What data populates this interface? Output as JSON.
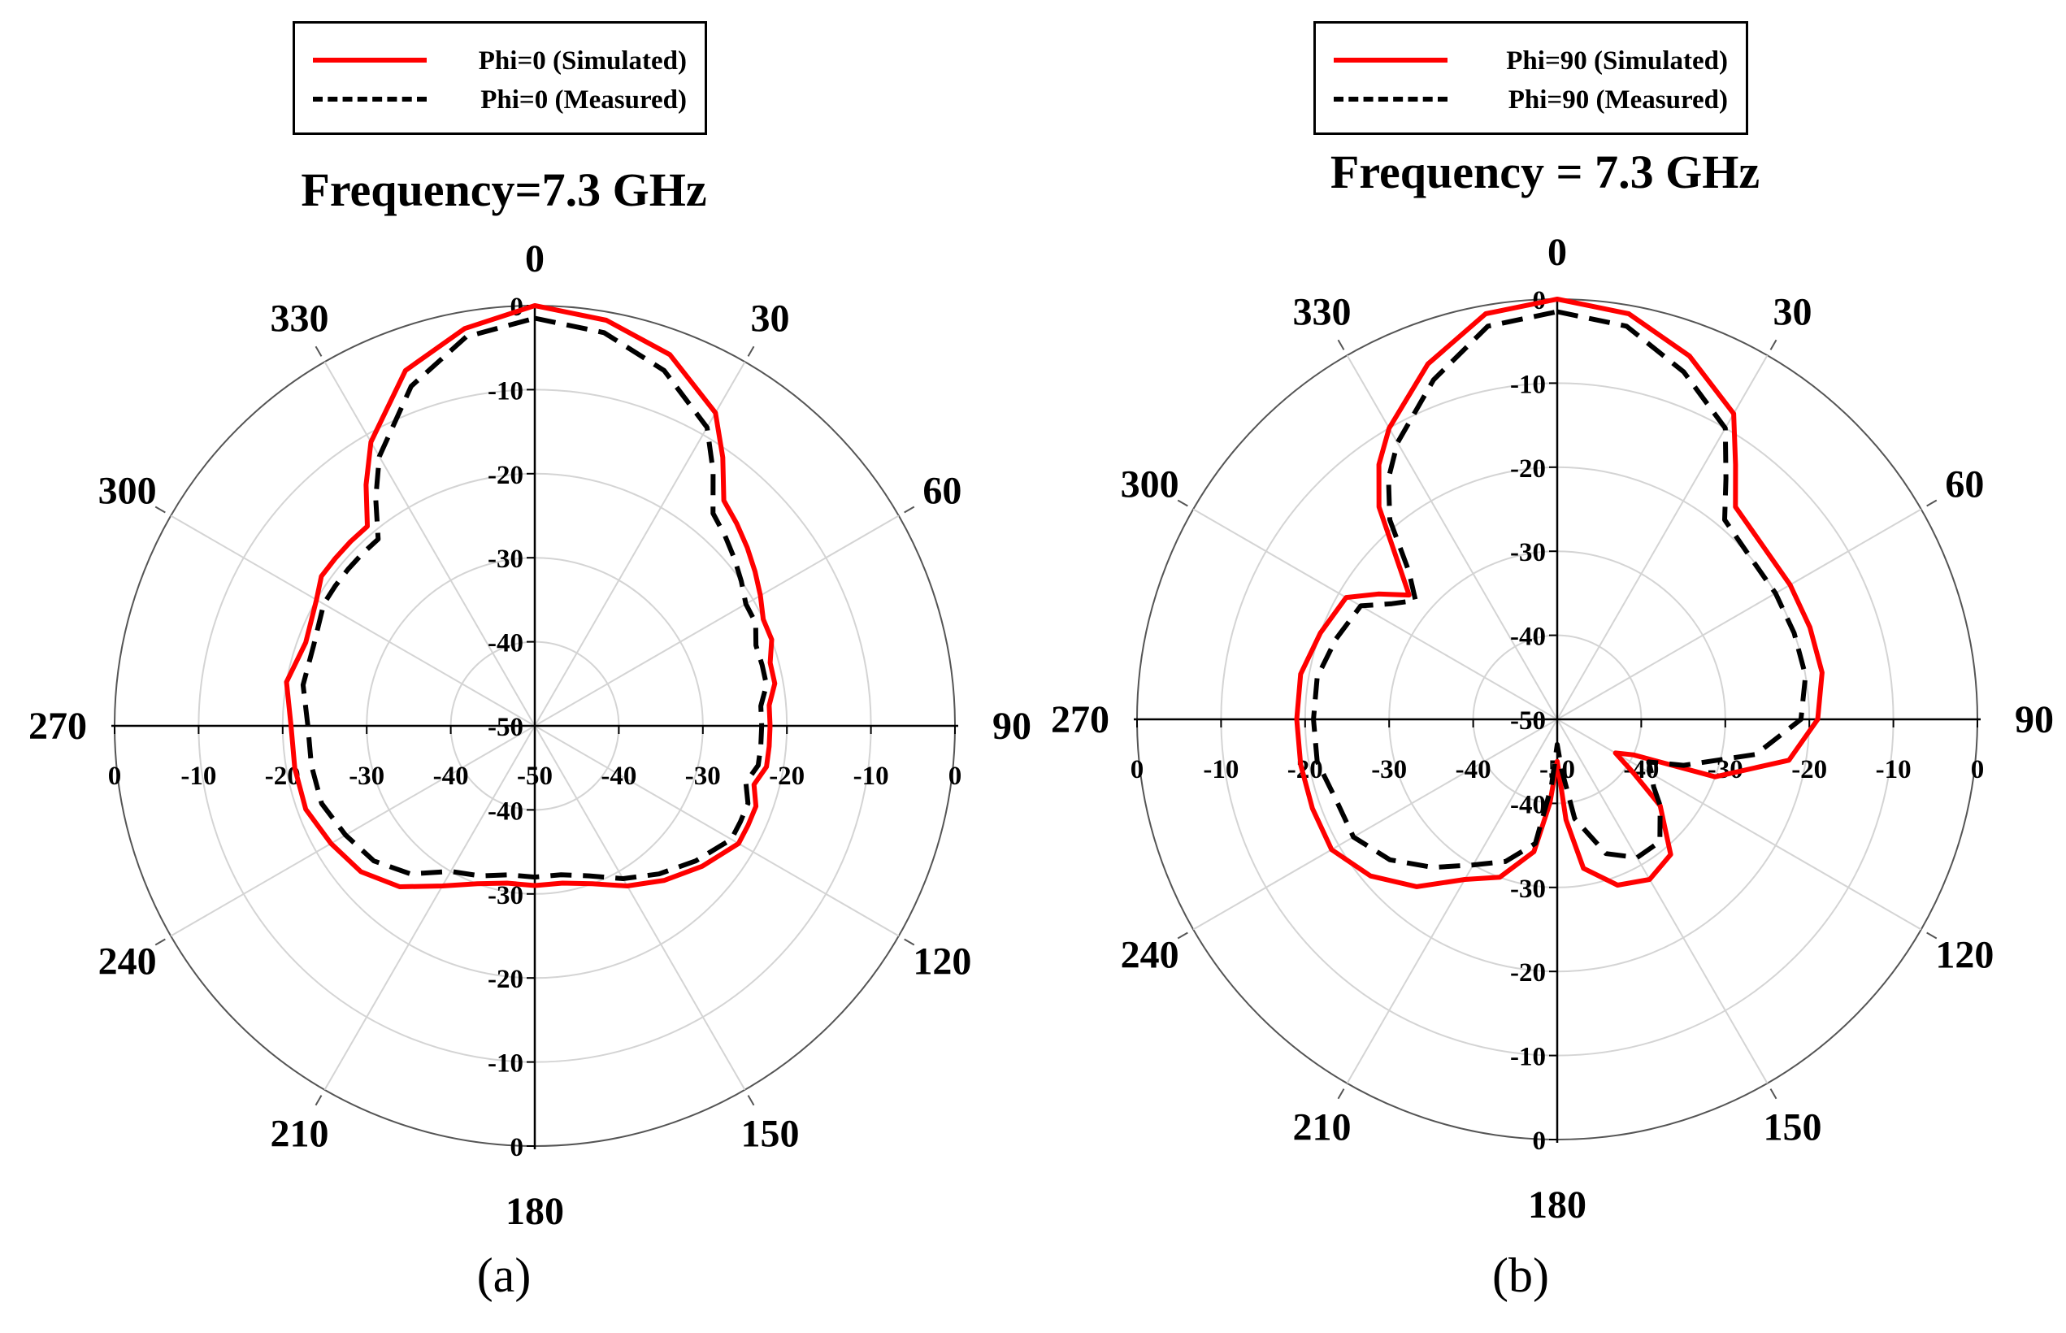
{
  "chart_data": [
    {
      "type": "polar-line",
      "panel_label": "(a)",
      "title": "Frequency=7.3 GHz",
      "angle_ticks": [
        "0",
        "30",
        "60",
        "90",
        "120",
        "150",
        "180",
        "210",
        "240",
        "270",
        "300",
        "330"
      ],
      "radial_tick_labels": [
        "0",
        "-10",
        "-20",
        "-30",
        "-40",
        "-50"
      ],
      "horizontal_axis_labels": [
        "0",
        "-10",
        "-20",
        "-30",
        "-40",
        "-50",
        "-40",
        "-30",
        "-20",
        "-10",
        "0"
      ],
      "vertical_axis_labels": [
        "0",
        "-10",
        "-20",
        "-30",
        "-40",
        "-50",
        "-40",
        "-30",
        "-20",
        "-10",
        "0"
      ],
      "radial_range": [
        -50,
        0
      ],
      "grid": true,
      "legend": {
        "position": "top-center",
        "entries": [
          "Phi=0 (Simulated)",
          "Phi=0 (Measured)"
        ]
      },
      "series": [
        {
          "name": "Phi=0 (Simulated)",
          "color": "#ff0000",
          "style": "solid",
          "angles": [
            0,
            10,
            20,
            30,
            35,
            40,
            45,
            50,
            55,
            60,
            65,
            70,
            75,
            80,
            85,
            90,
            95,
            100,
            105,
            110,
            115,
            120,
            130,
            140,
            150,
            160,
            170,
            180,
            190,
            200,
            210,
            220,
            230,
            240,
            250,
            260,
            270,
            280,
            290,
            300,
            305,
            310,
            315,
            320,
            325,
            330,
            340,
            350,
            360
          ],
          "values": [
            0,
            -1,
            -3,
            -7,
            -11,
            -15,
            -16,
            -17,
            -18,
            -19,
            -20,
            -20,
            -21,
            -21,
            -22,
            -22,
            -22,
            -22,
            -23,
            -22,
            -22,
            -22,
            -24,
            -26,
            -28,
            -30,
            -31,
            -31,
            -31,
            -30,
            -28,
            -25,
            -23,
            -22,
            -21,
            -21,
            -21,
            -20,
            -21,
            -20,
            -19,
            -19,
            -19,
            -19,
            -15,
            -11,
            -5,
            -2,
            0
          ]
        },
        {
          "name": "Phi=0 (Measured)",
          "color": "#000000",
          "style": "dashed",
          "angles": [
            0,
            10,
            20,
            30,
            35,
            40,
            45,
            50,
            55,
            60,
            65,
            70,
            75,
            80,
            85,
            90,
            95,
            100,
            105,
            110,
            115,
            120,
            130,
            140,
            150,
            160,
            170,
            180,
            190,
            200,
            210,
            220,
            230,
            240,
            250,
            260,
            270,
            280,
            290,
            300,
            305,
            310,
            315,
            320,
            325,
            330,
            340,
            350,
            360
          ],
          "values": [
            -1.5,
            -2.5,
            -5,
            -9,
            -13,
            -17,
            -18,
            -19,
            -20,
            -21,
            -21,
            -22,
            -22,
            -22,
            -23,
            -23,
            -23,
            -23,
            -24,
            -23,
            -23,
            -23,
            -25,
            -27,
            -29,
            -31,
            -32,
            -32,
            -32,
            -31,
            -30,
            -27,
            -25,
            -24,
            -23,
            -23,
            -23,
            -22,
            -22,
            -21,
            -21,
            -21,
            -21,
            -21,
            -17,
            -13,
            -7,
            -3,
            -1.5
          ]
        }
      ]
    },
    {
      "type": "polar-line",
      "panel_label": "(b)",
      "title": "Frequency = 7.3 GHz",
      "angle_ticks": [
        "0",
        "30",
        "60",
        "90",
        "120",
        "150",
        "180",
        "210",
        "240",
        "270",
        "300",
        "330"
      ],
      "radial_tick_labels": [
        "0",
        "-10",
        "-20",
        "-30",
        "-40",
        "-50"
      ],
      "horizontal_axis_labels": [
        "0",
        "-10",
        "-20",
        "-30",
        "-40",
        "-50",
        "-40",
        "-30",
        "-20",
        "-10",
        "0"
      ],
      "vertical_axis_labels": [
        "0",
        "-10",
        "-20",
        "-30",
        "-40",
        "-50",
        "-40",
        "-30",
        "-20",
        "-10",
        "0"
      ],
      "radial_range": [
        -50,
        0
      ],
      "grid": true,
      "legend": {
        "position": "top-center",
        "entries": [
          "Phi=90 (Simulated)",
          "Phi=90 (Measured)"
        ]
      },
      "series": [
        {
          "name": "Phi=90 (Simulated)",
          "color": "#ff0000",
          "style": "solid",
          "angles": [
            0,
            10,
            20,
            30,
            35,
            40,
            50,
            60,
            70,
            80,
            90,
            100,
            110,
            115,
            120,
            125,
            130,
            140,
            150,
            160,
            170,
            175,
            180,
            185,
            190,
            200,
            210,
            220,
            230,
            240,
            250,
            260,
            270,
            280,
            290,
            300,
            305,
            310,
            315,
            320,
            325,
            330,
            340,
            350,
            360
          ],
          "values": [
            0,
            -1,
            -4,
            -8,
            -13,
            -17,
            -18,
            -18,
            -18,
            -18,
            -19,
            -22,
            -30,
            -40,
            -42,
            -39,
            -34,
            -29,
            -28,
            -29,
            -32,
            -38,
            -45,
            -40,
            -34,
            -30,
            -28,
            -24,
            -21,
            -19,
            -19,
            -19,
            -19,
            -19,
            -20,
            -21,
            -24,
            -27,
            -23,
            -17,
            -13,
            -10,
            -5,
            -1,
            0
          ]
        },
        {
          "name": "Phi=90 (Measured)",
          "color": "#000000",
          "style": "dashed",
          "angles": [
            0,
            10,
            20,
            30,
            35,
            40,
            50,
            60,
            70,
            80,
            90,
            100,
            110,
            115,
            120,
            125,
            130,
            140,
            150,
            160,
            170,
            175,
            180,
            185,
            190,
            200,
            210,
            220,
            230,
            240,
            250,
            260,
            270,
            280,
            290,
            300,
            305,
            310,
            315,
            320,
            325,
            330,
            340,
            350,
            360
          ],
          "values": [
            -1.5,
            -2.5,
            -6,
            -10,
            -15,
            -19,
            -20,
            -20,
            -20,
            -20,
            -21,
            -26,
            -34,
            -38,
            -37,
            -36,
            -34,
            -31,
            -31,
            -33,
            -38,
            -44,
            -47,
            -42,
            -35,
            -32,
            -30,
            -27,
            -24,
            -22,
            -22,
            -21,
            -21,
            -21,
            -22,
            -23,
            -26,
            -28,
            -25,
            -19,
            -15,
            -12,
            -7,
            -2.5,
            -1.5
          ]
        }
      ]
    }
  ]
}
